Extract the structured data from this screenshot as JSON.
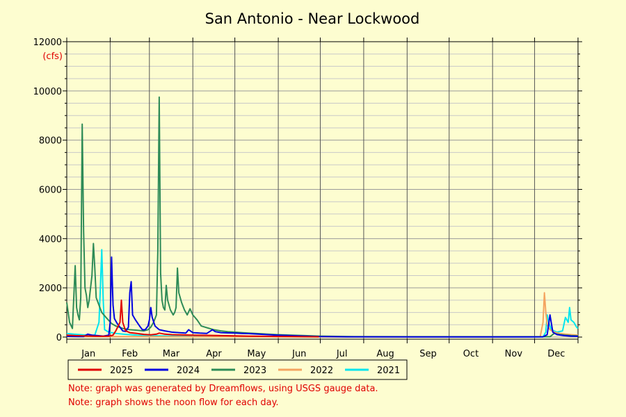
{
  "chart_data": {
    "type": "line",
    "title": "San Antonio - Near Lockwood",
    "ylabel": "(cfs)",
    "xlabel": "",
    "ylim": [
      0,
      12000
    ],
    "yticks": [
      0,
      2000,
      4000,
      6000,
      8000,
      10000,
      12000
    ],
    "x_unit": "day of year",
    "x_range": [
      0,
      365
    ],
    "months": [
      "Jan",
      "Feb",
      "Mar",
      "Apr",
      "May",
      "Jun",
      "Jul",
      "Aug",
      "Sep",
      "Oct",
      "Nov",
      "Dec"
    ],
    "grid": true,
    "legend_position": "bottom",
    "series": [
      {
        "name": "2025",
        "color": "#e00000",
        "points": [
          [
            0,
            80
          ],
          [
            6,
            60
          ],
          [
            12,
            50
          ],
          [
            18,
            40
          ],
          [
            24,
            30
          ],
          [
            30,
            40
          ],
          [
            33,
            80
          ],
          [
            35,
            250
          ],
          [
            38,
            600
          ],
          [
            39,
            1500
          ],
          [
            40,
            600
          ],
          [
            42,
            250
          ],
          [
            45,
            180
          ],
          [
            50,
            150
          ],
          [
            55,
            110
          ],
          [
            60,
            90
          ],
          [
            64,
            120
          ],
          [
            66,
            160
          ],
          [
            70,
            120
          ],
          [
            75,
            100
          ],
          [
            80,
            90
          ],
          [
            90,
            80
          ],
          [
            100,
            70
          ],
          [
            110,
            60
          ],
          [
            120,
            50
          ],
          [
            130,
            40
          ],
          [
            140,
            30
          ],
          [
            150,
            25
          ],
          [
            160,
            20
          ],
          [
            170,
            15
          ],
          [
            180,
            10
          ]
        ]
      },
      {
        "name": "2024",
        "color": "#0000e0",
        "points": [
          [
            0,
            30
          ],
          [
            8,
            20
          ],
          [
            12,
            20
          ],
          [
            15,
            120
          ],
          [
            18,
            80
          ],
          [
            22,
            60
          ],
          [
            26,
            40
          ],
          [
            30,
            80
          ],
          [
            31,
            600
          ],
          [
            32,
            3250
          ],
          [
            33,
            1300
          ],
          [
            34,
            750
          ],
          [
            36,
            550
          ],
          [
            40,
            250
          ],
          [
            42,
            230
          ],
          [
            44,
            400
          ],
          [
            45,
            1800
          ],
          [
            46,
            2250
          ],
          [
            47,
            900
          ],
          [
            49,
            700
          ],
          [
            52,
            450
          ],
          [
            54,
            300
          ],
          [
            56,
            300
          ],
          [
            58,
            450
          ],
          [
            59,
            700
          ],
          [
            60,
            1200
          ],
          [
            61,
            800
          ],
          [
            63,
            450
          ],
          [
            66,
            300
          ],
          [
            70,
            250
          ],
          [
            75,
            200
          ],
          [
            80,
            180
          ],
          [
            85,
            160
          ],
          [
            87,
            300
          ],
          [
            90,
            180
          ],
          [
            95,
            160
          ],
          [
            100,
            150
          ],
          [
            104,
            300
          ],
          [
            106,
            220
          ],
          [
            110,
            180
          ],
          [
            115,
            170
          ],
          [
            120,
            160
          ],
          [
            125,
            150
          ],
          [
            130,
            140
          ],
          [
            140,
            110
          ],
          [
            150,
            80
          ],
          [
            160,
            60
          ],
          [
            170,
            40
          ],
          [
            180,
            20
          ],
          [
            200,
            10
          ],
          [
            250,
            5
          ],
          [
            300,
            5
          ],
          [
            330,
            5
          ],
          [
            340,
            10
          ],
          [
            343,
            100
          ],
          [
            345,
            900
          ],
          [
            347,
            200
          ],
          [
            350,
            100
          ],
          [
            355,
            60
          ],
          [
            360,
            40
          ],
          [
            365,
            30
          ]
        ]
      },
      {
        "name": "2023",
        "color": "#2e8b57",
        "points": [
          [
            0,
            1400
          ],
          [
            2,
            600
          ],
          [
            4,
            350
          ],
          [
            6,
            2900
          ],
          [
            7,
            1200
          ],
          [
            8,
            900
          ],
          [
            9,
            700
          ],
          [
            10,
            1600
          ],
          [
            11,
            8650
          ],
          [
            12,
            4300
          ],
          [
            13,
            2000
          ],
          [
            14,
            1700
          ],
          [
            15,
            1200
          ],
          [
            16,
            1500
          ],
          [
            18,
            2500
          ],
          [
            19,
            3800
          ],
          [
            20,
            2800
          ],
          [
            21,
            1600
          ],
          [
            23,
            1300
          ],
          [
            25,
            1000
          ],
          [
            28,
            800
          ],
          [
            32,
            550
          ],
          [
            35,
            450
          ],
          [
            40,
            350
          ],
          [
            45,
            300
          ],
          [
            50,
            280
          ],
          [
            55,
            250
          ],
          [
            58,
            300
          ],
          [
            60,
            400
          ],
          [
            62,
            600
          ],
          [
            64,
            900
          ],
          [
            65,
            3500
          ],
          [
            66,
            9750
          ],
          [
            67,
            2600
          ],
          [
            68,
            1500
          ],
          [
            69,
            1200
          ],
          [
            70,
            1100
          ],
          [
            71,
            2100
          ],
          [
            72,
            1500
          ],
          [
            74,
            1100
          ],
          [
            76,
            900
          ],
          [
            77,
            1000
          ],
          [
            78,
            1200
          ],
          [
            79,
            2800
          ],
          [
            80,
            1800
          ],
          [
            82,
            1400
          ],
          [
            84,
            1100
          ],
          [
            86,
            900
          ],
          [
            88,
            1150
          ],
          [
            90,
            900
          ],
          [
            93,
            700
          ],
          [
            96,
            450
          ],
          [
            100,
            380
          ],
          [
            105,
            300
          ],
          [
            110,
            250
          ],
          [
            115,
            220
          ],
          [
            120,
            200
          ],
          [
            125,
            180
          ],
          [
            130,
            160
          ],
          [
            140,
            130
          ],
          [
            150,
            100
          ],
          [
            160,
            80
          ],
          [
            170,
            60
          ],
          [
            180,
            40
          ],
          [
            200,
            20
          ],
          [
            250,
            15
          ],
          [
            300,
            10
          ],
          [
            345,
            15
          ],
          [
            348,
            150
          ],
          [
            352,
            100
          ],
          [
            356,
            80
          ],
          [
            360,
            60
          ],
          [
            365,
            50
          ]
        ]
      },
      {
        "name": "2022",
        "color": "#f4a460",
        "points": [
          [
            0,
            20
          ],
          [
            40,
            20
          ],
          [
            100,
            10
          ],
          [
            200,
            5
          ],
          [
            300,
            5
          ],
          [
            338,
            10
          ],
          [
            340,
            600
          ],
          [
            341,
            1800
          ],
          [
            342,
            1000
          ],
          [
            343,
            500
          ],
          [
            345,
            300
          ],
          [
            348,
            200
          ],
          [
            352,
            150
          ],
          [
            356,
            120
          ],
          [
            360,
            100
          ],
          [
            365,
            80
          ]
        ]
      },
      {
        "name": "2021",
        "color": "#00e5ee",
        "points": [
          [
            0,
            150
          ],
          [
            5,
            120
          ],
          [
            10,
            100
          ],
          [
            15,
            80
          ],
          [
            20,
            80
          ],
          [
            23,
            600
          ],
          [
            24,
            2000
          ],
          [
            25,
            3550
          ],
          [
            26,
            1500
          ],
          [
            27,
            300
          ],
          [
            30,
            200
          ],
          [
            35,
            150
          ],
          [
            40,
            120
          ],
          [
            50,
            80
          ],
          [
            60,
            60
          ],
          [
            80,
            40
          ],
          [
            100,
            30
          ],
          [
            150,
            20
          ],
          [
            200,
            10
          ],
          [
            300,
            5
          ],
          [
            340,
            5
          ],
          [
            342,
            200
          ],
          [
            343,
            900
          ],
          [
            344,
            600
          ],
          [
            346,
            300
          ],
          [
            350,
            200
          ],
          [
            354,
            250
          ],
          [
            356,
            800
          ],
          [
            358,
            600
          ],
          [
            359,
            1200
          ],
          [
            360,
            700
          ],
          [
            362,
            600
          ],
          [
            364,
            400
          ],
          [
            365,
            350
          ]
        ]
      }
    ]
  },
  "notes": [
    "Note: graph was generated by Dreamflows, using USGS gauge data.",
    "Note: graph shows the noon flow for each day."
  ]
}
